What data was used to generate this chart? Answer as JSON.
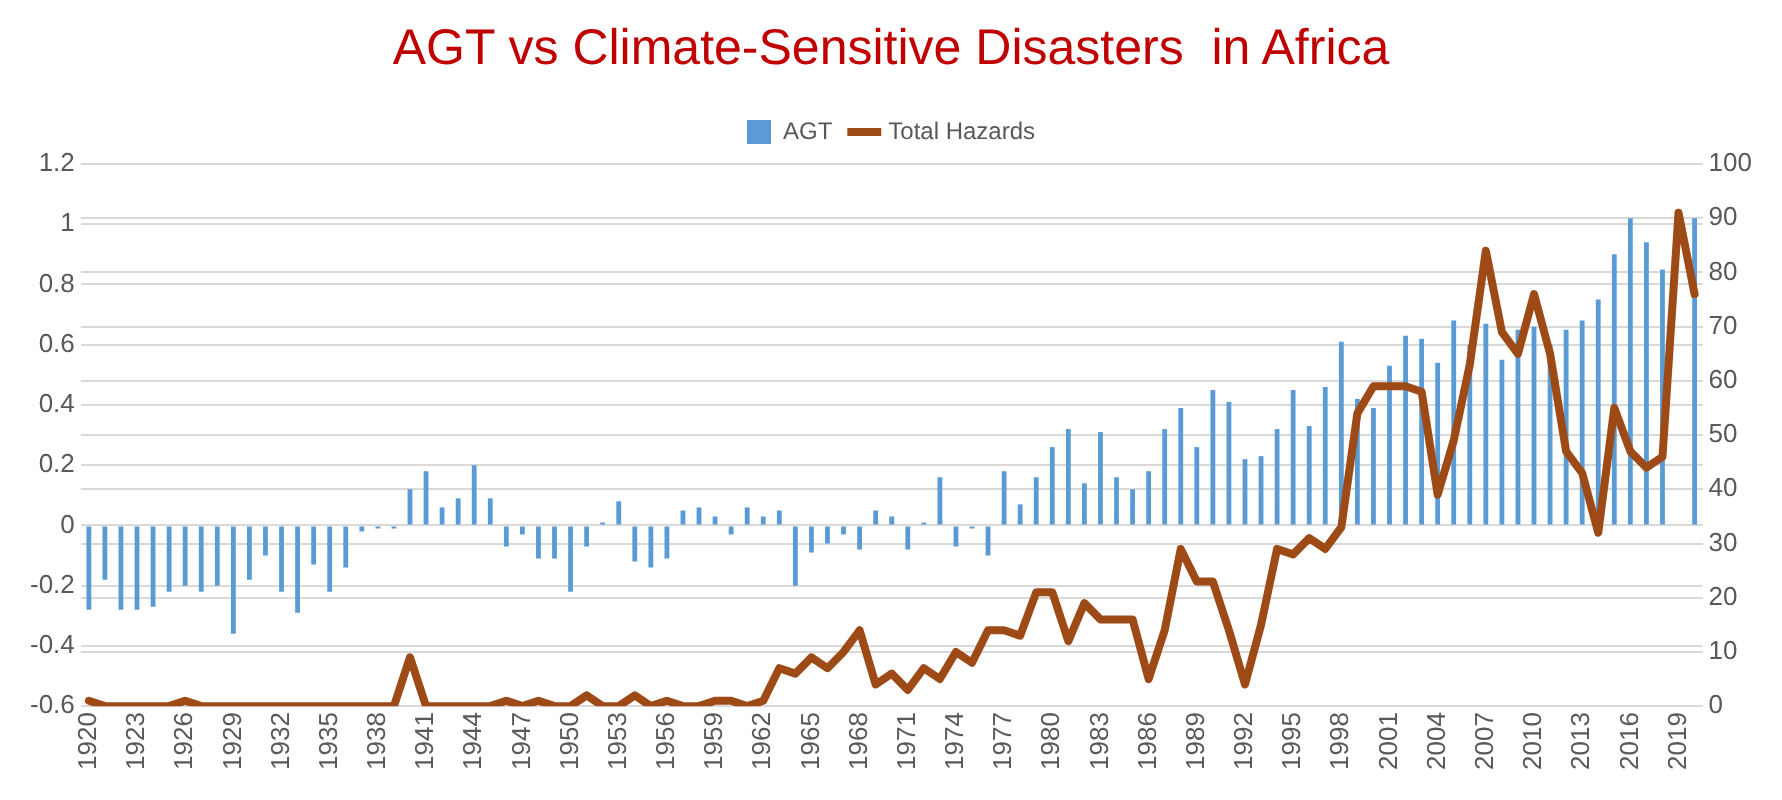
{
  "chart_data": {
    "type": "bar",
    "title": "AGT vs Climate-Sensitive Disasters  in Africa",
    "categories": [
      "1920",
      null,
      null,
      "1923",
      null,
      null,
      "1926",
      null,
      null,
      "1929",
      null,
      null,
      "1932",
      null,
      null,
      "1935",
      null,
      null,
      "1938",
      null,
      null,
      "1941",
      null,
      null,
      "1944",
      null,
      null,
      "1947",
      null,
      null,
      "1950",
      null,
      null,
      "1953",
      null,
      null,
      "1956",
      null,
      null,
      "1959",
      null,
      null,
      "1962",
      null,
      null,
      "1965",
      null,
      null,
      "1968",
      null,
      null,
      "1971",
      null,
      null,
      "1974",
      null,
      null,
      "1977",
      null,
      null,
      "1980",
      null,
      null,
      "1983",
      null,
      null,
      "1986",
      null,
      null,
      "1989",
      null,
      null,
      "1992",
      null,
      null,
      "1995",
      null,
      null,
      "1998",
      null,
      null,
      "2001",
      null,
      null,
      "2004",
      null,
      null,
      "2007",
      null,
      null,
      "2010",
      null,
      null,
      "2013",
      null,
      null,
      "2016",
      null,
      null,
      "2019",
      null
    ],
    "series": [
      {
        "name": "AGT",
        "color": "#5b9bd5",
        "values": [
          -0.28,
          -0.18,
          -0.28,
          -0.28,
          -0.27,
          -0.22,
          -0.2,
          -0.22,
          -0.2,
          -0.36,
          -0.18,
          -0.1,
          -0.22,
          -0.29,
          -0.13,
          -0.22,
          -0.14,
          -0.02,
          -0.01,
          -0.01,
          0.12,
          0.18,
          0.06,
          0.09,
          0.2,
          0.09,
          -0.07,
          -0.03,
          -0.11,
          -0.11,
          -0.22,
          -0.07,
          0.01,
          0.08,
          -0.12,
          -0.14,
          -0.11,
          0.05,
          0.06,
          0.03,
          -0.03,
          0.06,
          0.03,
          0.05,
          -0.2,
          -0.09,
          -0.06,
          -0.03,
          -0.08,
          0.05,
          0.03,
          -0.08,
          0.01,
          0.16,
          -0.07,
          -0.01,
          -0.1,
          0.18,
          0.07,
          0.16,
          0.26,
          0.32,
          0.14,
          0.31,
          0.16,
          0.12,
          0.18,
          0.32,
          0.39,
          0.26,
          0.45,
          0.41,
          0.22,
          0.23,
          0.32,
          0.45,
          0.33,
          0.46,
          0.61,
          0.42,
          0.39,
          0.53,
          0.63,
          0.62,
          0.54,
          0.68,
          0.6,
          0.67,
          0.55,
          0.65,
          0.66,
          0.6,
          0.65,
          0.68,
          0.75,
          0.9,
          1.02,
          0.94,
          0.85,
          null,
          1.02
        ]
      },
      {
        "name": "Total Hazards",
        "type": "line",
        "axis": "y2",
        "color": "#9e4a16",
        "values": [
          1,
          0,
          0,
          0,
          0,
          0,
          1,
          0,
          0,
          0,
          0,
          0,
          0,
          0,
          0,
          0,
          0,
          0,
          0,
          0,
          9,
          0,
          0,
          0,
          0,
          0,
          1,
          0,
          1,
          0,
          0,
          2,
          0,
          0,
          2,
          0,
          1,
          0,
          0,
          1,
          1,
          0,
          1,
          7,
          6,
          9,
          7,
          10,
          14,
          4,
          6,
          3,
          7,
          5,
          10,
          8,
          14,
          14,
          13,
          21,
          21,
          12,
          19,
          16,
          16,
          16,
          5,
          14,
          29,
          23,
          23,
          14,
          4,
          15,
          29,
          28,
          31,
          29,
          33,
          54,
          59,
          59,
          59,
          58,
          39,
          49,
          63,
          84,
          69,
          65,
          76,
          65,
          47,
          43,
          32,
          55,
          47,
          44,
          46,
          91,
          76
        ]
      }
    ],
    "ylim": [
      -0.6,
      1.2
    ],
    "yticks": [
      -0.6,
      -0.4,
      -0.2,
      0,
      0.2,
      0.4,
      0.6,
      0.8,
      1,
      1.2
    ],
    "y2lim": [
      0,
      100
    ],
    "y2ticks": [
      0,
      10,
      20,
      30,
      40,
      50,
      60,
      70,
      80,
      90,
      100
    ],
    "grid": "y",
    "legend": "top",
    "marker": "none",
    "line_style": "solid"
  }
}
